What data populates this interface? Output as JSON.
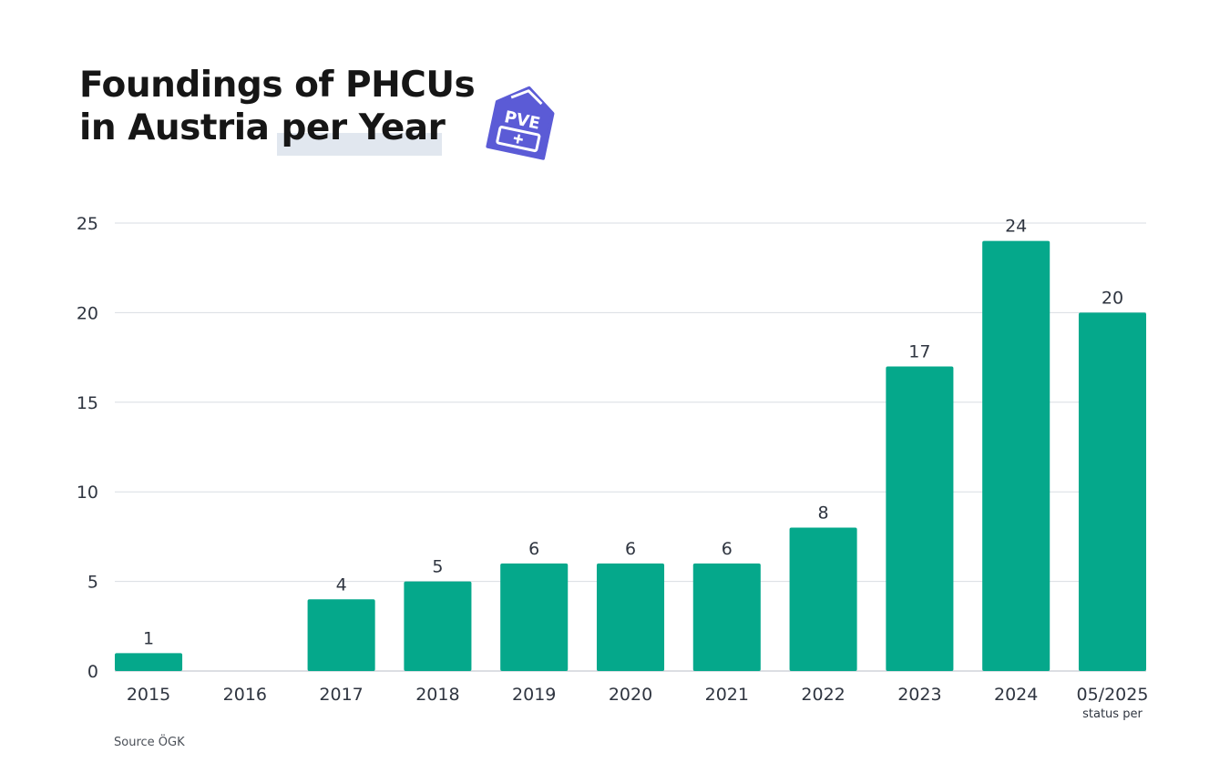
{
  "title": {
    "line1": "Foundings of PHCUs",
    "line2": "in Austria per Year"
  },
  "logo": {
    "icon": "pve-house-icon",
    "text": "PVE",
    "color": "#5b5bd6"
  },
  "source": "Source ÖGK",
  "colors": {
    "bar": "#05a88b",
    "grid": "#d9dde3",
    "axis_text": "#2f3540"
  },
  "chart_data": {
    "type": "bar",
    "title": "Foundings of PHCUs in Austria per Year",
    "categories": [
      "2015",
      "2016",
      "2017",
      "2018",
      "2019",
      "2020",
      "2021",
      "2022",
      "2023",
      "2024",
      "05/2025"
    ],
    "values": [
      1,
      0,
      4,
      5,
      6,
      6,
      6,
      8,
      17,
      24,
      20
    ],
    "labels": [
      "1",
      "",
      "4",
      "5",
      "6",
      "6",
      "6",
      "8",
      "17",
      "24",
      "20"
    ],
    "category_notes": [
      "",
      "",
      "",
      "",
      "",
      "",
      "",
      "",
      "",
      "",
      "status per"
    ],
    "xlabel": "",
    "ylabel": "",
    "ylim": [
      0,
      25
    ],
    "yticks": [
      0,
      5,
      10,
      15,
      20,
      25
    ],
    "grid": true,
    "legend": "none"
  }
}
